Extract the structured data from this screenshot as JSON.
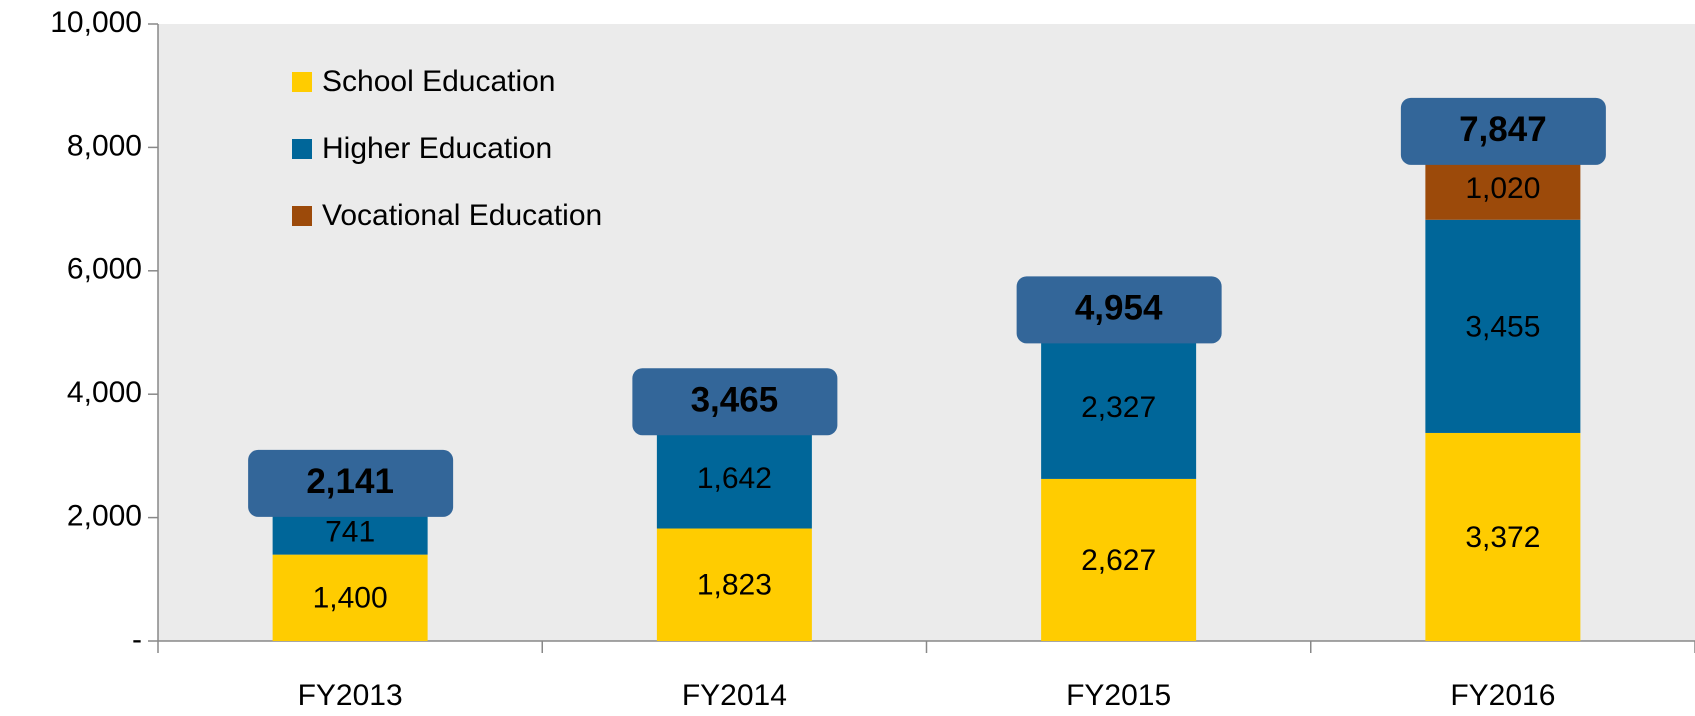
{
  "chart_data": {
    "type": "stacked_bar",
    "categories": [
      "FY2013",
      "FY2014",
      "FY2015",
      "FY2016"
    ],
    "series": [
      {
        "name": "School Education",
        "color": "#ffcc00",
        "label_color": "#000000",
        "values": [
          1400,
          1823,
          2627,
          3372
        ],
        "value_labels": [
          "1,400",
          "1,823",
          "2,627",
          "3,372"
        ]
      },
      {
        "name": "Higher Education",
        "color": "#006699",
        "label_color": "#ffffff",
        "values": [
          741,
          1642,
          2327,
          3455
        ],
        "value_labels": [
          "741",
          "1,642",
          "2,327",
          "3,455"
        ]
      },
      {
        "name": "Vocational Education",
        "color": "#9c4a0a",
        "label_color": "#ffffff",
        "values": [
          null,
          null,
          null,
          1020
        ],
        "value_labels": [
          null,
          null,
          null,
          "1,020"
        ]
      }
    ],
    "totals": [
      2141,
      3465,
      4954,
      7847
    ],
    "total_labels": [
      "2,141",
      "3,465",
      "4,954",
      "7,847"
    ],
    "total_color": "#336699",
    "ylim": [
      0,
      10000
    ],
    "yticks": [
      {
        "value": 0,
        "label": "-"
      },
      {
        "value": 2000,
        "label": "2,000"
      },
      {
        "value": 4000,
        "label": "4,000"
      },
      {
        "value": 6000,
        "label": "6,000"
      },
      {
        "value": 8000,
        "label": "8,000"
      },
      {
        "value": 10000,
        "label": "10,000"
      }
    ],
    "legend": "upper left",
    "plot_background": "#ebebeb"
  }
}
